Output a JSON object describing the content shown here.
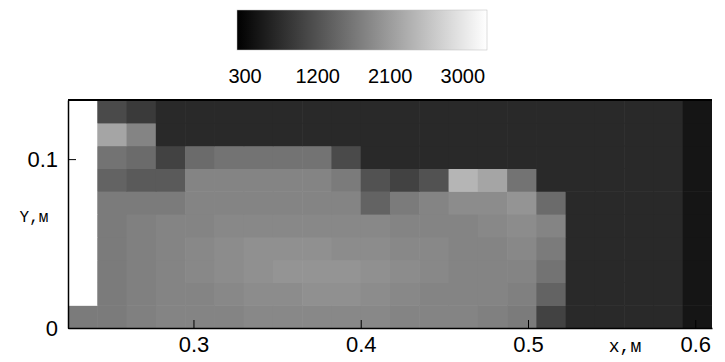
{
  "chart_data": {
    "type": "heatmap",
    "x_label": "x,м",
    "y_label": "Y,м",
    "xlim": [
      0.225,
      0.61
    ],
    "ylim": [
      0,
      0.135
    ],
    "xticks": [
      0.3,
      0.4,
      0.5,
      0.6
    ],
    "yticks": [
      0,
      0.1
    ],
    "x_edges": [
      0.225,
      0.2425,
      0.26,
      0.2775,
      0.295,
      0.3125,
      0.33,
      0.3475,
      0.365,
      0.3825,
      0.4,
      0.4175,
      0.435,
      0.4525,
      0.47,
      0.4875,
      0.505,
      0.5225,
      0.54,
      0.5575,
      0.575,
      0.5925,
      0.61
    ],
    "y_edges": [
      0,
      0.0135,
      0.027,
      0.0405,
      0.054,
      0.0675,
      0.081,
      0.0945,
      0.108,
      0.1215,
      0.135
    ],
    "cells": [
      [
        1700,
        1700,
        1750,
        1800,
        1800,
        1800,
        1850,
        1850,
        1850,
        1850,
        1850,
        1800,
        1800,
        1800,
        1750,
        1700,
        1000,
        700,
        700,
        700,
        700,
        450
      ],
      [
        null,
        1700,
        1750,
        1800,
        1800,
        1850,
        1900,
        1900,
        1950,
        1950,
        1900,
        1850,
        1800,
        1800,
        1800,
        1750,
        1400,
        700,
        700,
        700,
        700,
        450
      ],
      [
        null,
        1700,
        1750,
        1800,
        1850,
        1900,
        1950,
        2000,
        2000,
        2000,
        1950,
        1900,
        1850,
        1800,
        1800,
        1800,
        1600,
        700,
        700,
        700,
        700,
        450
      ],
      [
        null,
        1700,
        1750,
        1800,
        1850,
        1900,
        1950,
        1950,
        1950,
        1900,
        1900,
        1850,
        1850,
        1800,
        1800,
        1850,
        1700,
        700,
        700,
        700,
        700,
        450
      ],
      [
        null,
        1700,
        1750,
        1800,
        1800,
        1850,
        1850,
        1850,
        1850,
        1850,
        1850,
        1800,
        1800,
        1800,
        1850,
        1900,
        1800,
        700,
        700,
        700,
        700,
        450
      ],
      [
        null,
        1700,
        1700,
        1700,
        1800,
        1800,
        1800,
        1800,
        1800,
        1800,
        1400,
        1700,
        1800,
        1900,
        1900,
        2000,
        1500,
        700,
        700,
        700,
        700,
        450
      ],
      [
        null,
        1400,
        1300,
        1300,
        1800,
        1800,
        1800,
        1800,
        1800,
        1700,
        1200,
        1000,
        1200,
        2400,
        2200,
        1600,
        700,
        700,
        700,
        700,
        700,
        450
      ],
      [
        null,
        1600,
        1500,
        1000,
        1500,
        1600,
        1600,
        1600,
        1600,
        1100,
        700,
        700,
        700,
        700,
        700,
        700,
        700,
        700,
        700,
        700,
        700,
        450
      ],
      [
        null,
        2200,
        1800,
        700,
        700,
        700,
        700,
        700,
        700,
        700,
        700,
        700,
        700,
        700,
        700,
        700,
        700,
        700,
        700,
        700,
        700,
        450
      ],
      [
        null,
        1100,
        900,
        700,
        700,
        700,
        700,
        700,
        700,
        700,
        700,
        700,
        700,
        700,
        700,
        700,
        700,
        700,
        700,
        700,
        700,
        450
      ]
    ],
    "color_range": [
      200,
      3300
    ],
    "color_ticks": [
      300,
      1200,
      2100,
      3000
    ]
  }
}
